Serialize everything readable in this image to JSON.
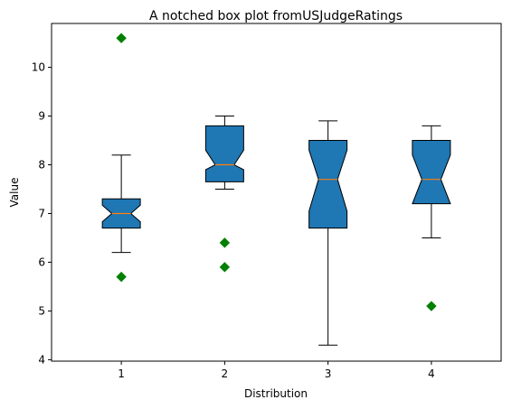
{
  "chart_data": {
    "type": "boxplot",
    "notched": true,
    "title": "A notched box plot fromUSJudgeRatings",
    "xlabel": "Distribution",
    "ylabel": "Value",
    "categories": [
      "1",
      "2",
      "3",
      "4"
    ],
    "ylim": [
      3.97,
      10.9
    ],
    "yticks": [
      4,
      5,
      6,
      7,
      8,
      9,
      10
    ],
    "grid": false,
    "colors": {
      "box": "#1f77b4",
      "median": "#ff7f0e",
      "flier": "#008000",
      "line": "#000000"
    },
    "boxes": [
      {
        "label": "1",
        "whisker_low": 6.2,
        "q1": 6.7,
        "notch_low": 6.83,
        "median": 7.0,
        "notch_high": 7.17,
        "q3": 7.3,
        "whisker_high": 8.2,
        "fliers": [
          10.6,
          5.7
        ]
      },
      {
        "label": "2",
        "whisker_low": 7.5,
        "q1": 7.65,
        "notch_low": 7.9,
        "median": 8.0,
        "notch_high": 8.3,
        "q3": 8.8,
        "whisker_high": 9.0,
        "fliers": [
          6.4,
          5.9
        ]
      },
      {
        "label": "3",
        "whisker_low": 4.3,
        "q1": 6.7,
        "notch_low": 7.05,
        "median": 7.7,
        "notch_high": 8.3,
        "q3": 8.5,
        "whisker_high": 8.9,
        "fliers": []
      },
      {
        "label": "4",
        "whisker_low": 6.5,
        "q1": 7.2,
        "notch_low": 7.2,
        "median": 7.7,
        "notch_high": 8.2,
        "q3": 8.5,
        "whisker_high": 8.8,
        "fliers": [
          5.1
        ]
      }
    ]
  }
}
